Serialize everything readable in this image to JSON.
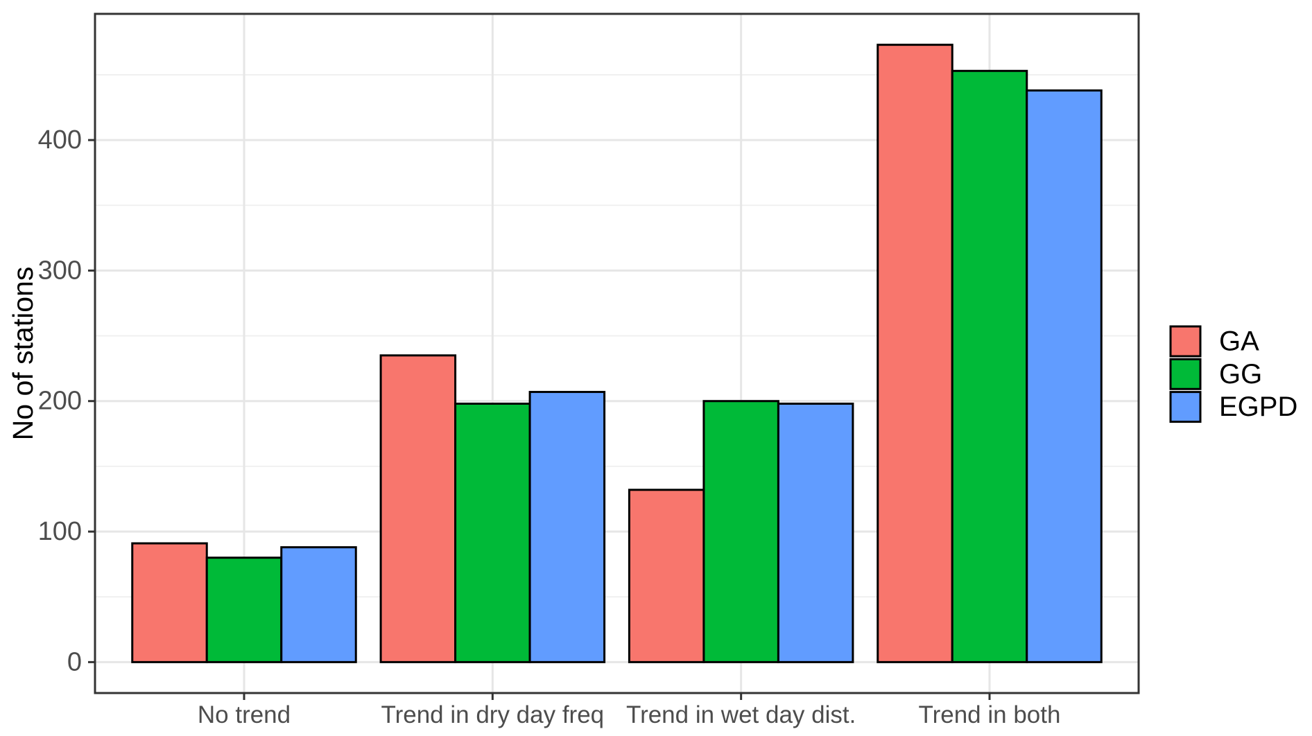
{
  "figure": {
    "background": "#FFFFFF"
  },
  "theme": {
    "panel_background": "#FFFFFF",
    "panel_border": "#333333",
    "grid_major": "#E6E6E6",
    "grid_minor": "#EFEFEF",
    "tick_mark": "#333333",
    "axis_text": "#4D4D4D",
    "axis_title": "#000000",
    "bar_border": "#000000",
    "legend_text": "#000000"
  },
  "chart_data": {
    "type": "bar",
    "title": "",
    "xlabel": "",
    "ylabel": "No of stations",
    "categories": [
      "No trend",
      "Trend in dry day freq",
      "Trend in wet day dist.",
      "Trend in both"
    ],
    "series": [
      {
        "name": "GA",
        "color": "#F8766D",
        "values": [
          91,
          235,
          132,
          473
        ]
      },
      {
        "name": "GG",
        "color": "#00BA38",
        "values": [
          80,
          198,
          200,
          453
        ]
      },
      {
        "name": "EGPD",
        "color": "#619CFF",
        "values": [
          88,
          207,
          198,
          438
        ]
      }
    ],
    "y_ticks": [
      0,
      100,
      200,
      300,
      400
    ],
    "y_minor_ticks": [
      50,
      150,
      250,
      350,
      450
    ],
    "ylim": [
      -23.7,
      496.7
    ],
    "grid": "horizontal major+minor, vertical major at category centers",
    "legend_position": "right",
    "bar_group_width_fraction": 0.9
  }
}
